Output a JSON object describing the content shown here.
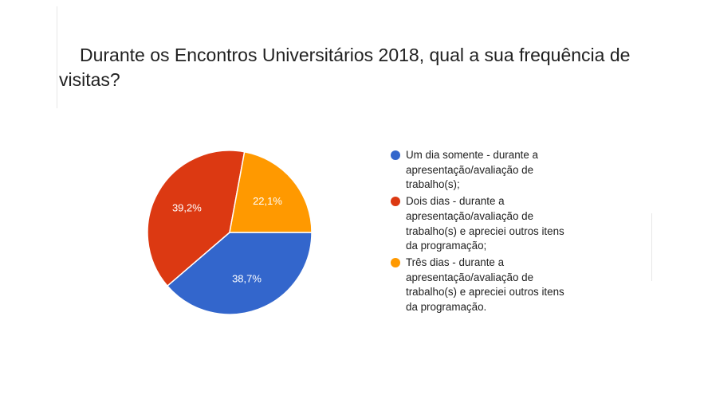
{
  "title": "Durante os Encontros Universitários 2018, qual a sua frequência de visitas?",
  "chart_data": {
    "type": "pie",
    "title": "Durante os Encontros Universitários 2018, qual a sua frequência de visitas?",
    "categories": [
      "Um dia somente - durante a apresentação/avaliação de trabalho(s);",
      "Dois dias - durante a apresentação/avaliação de trabalho(s) e apreciei outros itens da programação;",
      "Três dias - durante a apresentação/avaliação de trabalho(s) e apreciei outros itens da programação."
    ],
    "values": [
      38.7,
      39.2,
      22.1
    ],
    "data_labels": [
      "38,7%",
      "39,2%",
      "22,1%"
    ],
    "colors": [
      "#3366cc",
      "#dc3912",
      "#ff9900"
    ],
    "legend_position": "right"
  }
}
